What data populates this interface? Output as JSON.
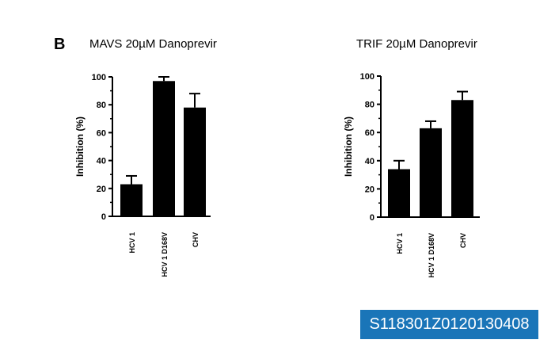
{
  "panel_label": "B",
  "id_label": "S118301Z0120130408",
  "colors": {
    "bar": "#000000",
    "id_box": "#1a75b8"
  },
  "chart_data": [
    {
      "type": "bar",
      "title": "MAVS 20µM Danoprevir",
      "ylabel": "Inhibition (%)",
      "xlabel": "",
      "ylim": [
        0,
        100
      ],
      "yticks": [
        "0",
        "20",
        "40",
        "60",
        "80",
        "100"
      ],
      "categories": [
        "HCV 1",
        "HCV 1 D168V",
        "CHV"
      ],
      "values": [
        23,
        97,
        78
      ],
      "error_upper": [
        29,
        100,
        88
      ],
      "grid": false
    },
    {
      "type": "bar",
      "title": "TRIF 20µM Danoprevir",
      "ylabel": "Inhibition (%)",
      "xlabel": "",
      "ylim": [
        0,
        100
      ],
      "yticks": [
        "0",
        "20",
        "40",
        "60",
        "80",
        "100"
      ],
      "categories": [
        "HCV 1",
        "HCV 1 D168V",
        "CHV"
      ],
      "values": [
        34,
        63,
        83
      ],
      "error_upper": [
        40,
        68,
        89
      ],
      "grid": false
    }
  ]
}
